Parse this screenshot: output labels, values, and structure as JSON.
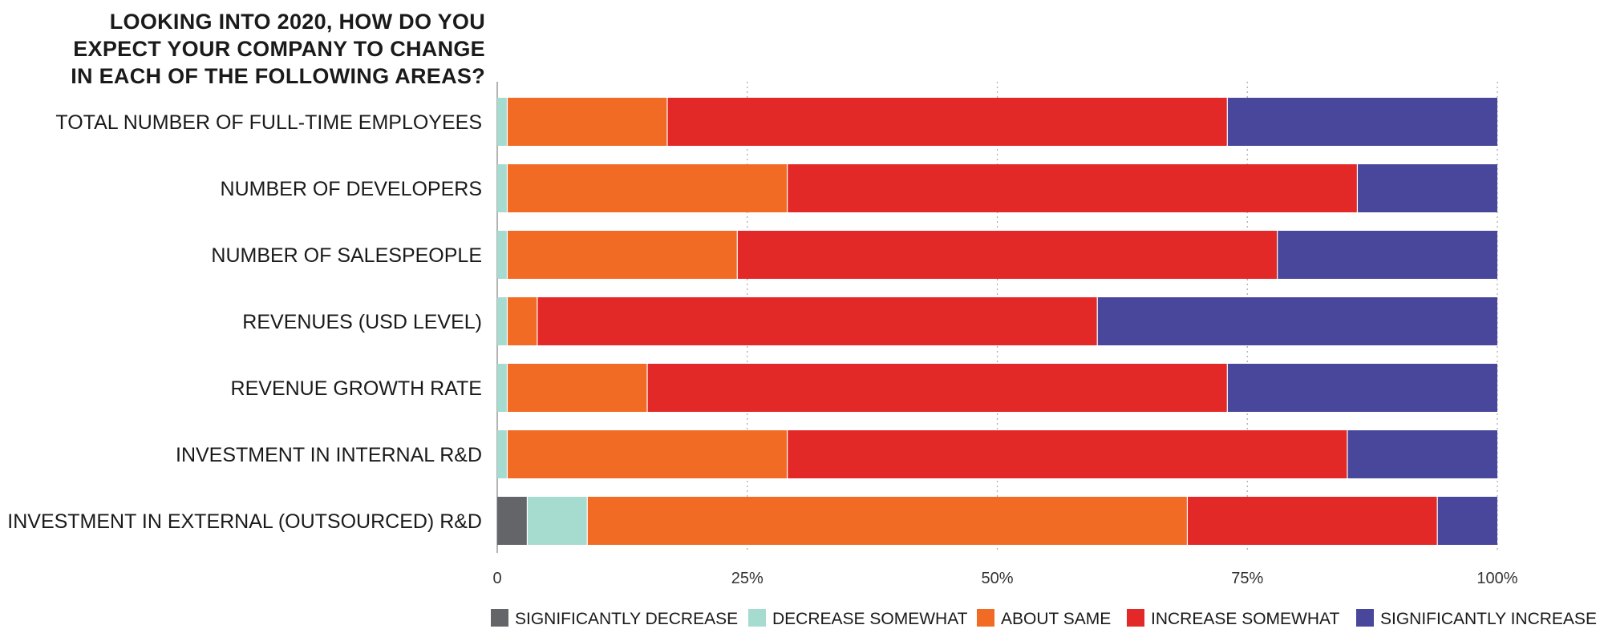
{
  "chart_data": {
    "type": "bar",
    "orientation": "horizontal",
    "stacked": true,
    "title_lines": [
      "LOOKING INTO 2020, HOW DO YOU",
      "EXPECT YOUR COMPANY TO CHANGE",
      "IN EACH OF THE FOLLOWING AREAS?"
    ],
    "categories": [
      "TOTAL NUMBER OF FULL-TIME EMPLOYEES",
      "NUMBER OF DEVELOPERS",
      "NUMBER OF SALESPEOPLE",
      "REVENUES (USD LEVEL)",
      "REVENUE GROWTH RATE",
      "INVESTMENT IN INTERNAL R&D",
      "INVESTMENT IN EXTERNAL (OUTSOURCED) R&D"
    ],
    "series": [
      {
        "name": "SIGNIFICANTLY DECREASE",
        "color": "#646569",
        "values": [
          0,
          0,
          0,
          0,
          0,
          0,
          3
        ]
      },
      {
        "name": "DECREASE SOMEWHAT",
        "color": "#a6dbd0",
        "values": [
          1,
          1,
          1,
          1,
          1,
          1,
          6
        ]
      },
      {
        "name": "ABOUT SAME",
        "color": "#f26b25",
        "values": [
          16,
          28,
          23,
          3,
          14,
          28,
          60
        ]
      },
      {
        "name": "INCREASE SOMEWHAT",
        "color": "#e32928",
        "values": [
          56,
          57,
          54,
          56,
          58,
          56,
          25
        ]
      },
      {
        "name": "SIGNIFICANTLY INCREASE",
        "color": "#48479b",
        "values": [
          27,
          14,
          22,
          40,
          27,
          15,
          6
        ]
      }
    ],
    "xlim": [
      0,
      100
    ],
    "x_ticks": [
      "0",
      "25%",
      "50%",
      "75%",
      "100%"
    ],
    "grid": "vertical dotted",
    "legend_position": "bottom"
  }
}
